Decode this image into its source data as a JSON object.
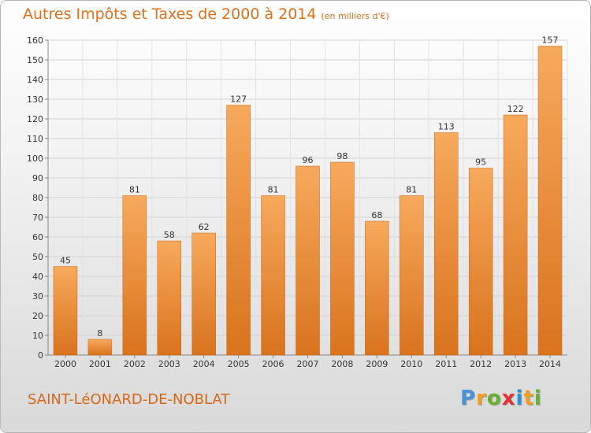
{
  "header": {
    "title": "Autres Impôts et Taxes de 2000 à 2014",
    "unit": "(en milliers d'€)"
  },
  "footer": {
    "commune": "SAINT-LéONARD-DE-NOBLAT",
    "logo": [
      "P",
      "r",
      "o",
      "x",
      "i",
      "t",
      "i"
    ]
  },
  "colors": {
    "bar_top": "#f7a95c",
    "bar_bottom": "#d9731d",
    "bar_edge": "#c9691b",
    "title": "#e0701c"
  },
  "chart_data": {
    "type": "bar",
    "title": "Autres Impôts et Taxes de 2000 à 2014",
    "subtitle": "(en milliers d'€)",
    "xlabel": "",
    "ylabel": "",
    "categories": [
      "2000",
      "2001",
      "2002",
      "2003",
      "2004",
      "2005",
      "2006",
      "2007",
      "2008",
      "2009",
      "2010",
      "2011",
      "2012",
      "2013",
      "2014"
    ],
    "values": [
      45,
      8,
      81,
      58,
      62,
      127,
      81,
      96,
      98,
      68,
      81,
      113,
      95,
      122,
      157
    ],
    "ylim": [
      0,
      160
    ],
    "yticks": [
      0,
      10,
      20,
      30,
      40,
      50,
      60,
      70,
      80,
      90,
      100,
      110,
      120,
      130,
      140,
      150,
      160
    ],
    "grid": true,
    "data_labels": true
  }
}
